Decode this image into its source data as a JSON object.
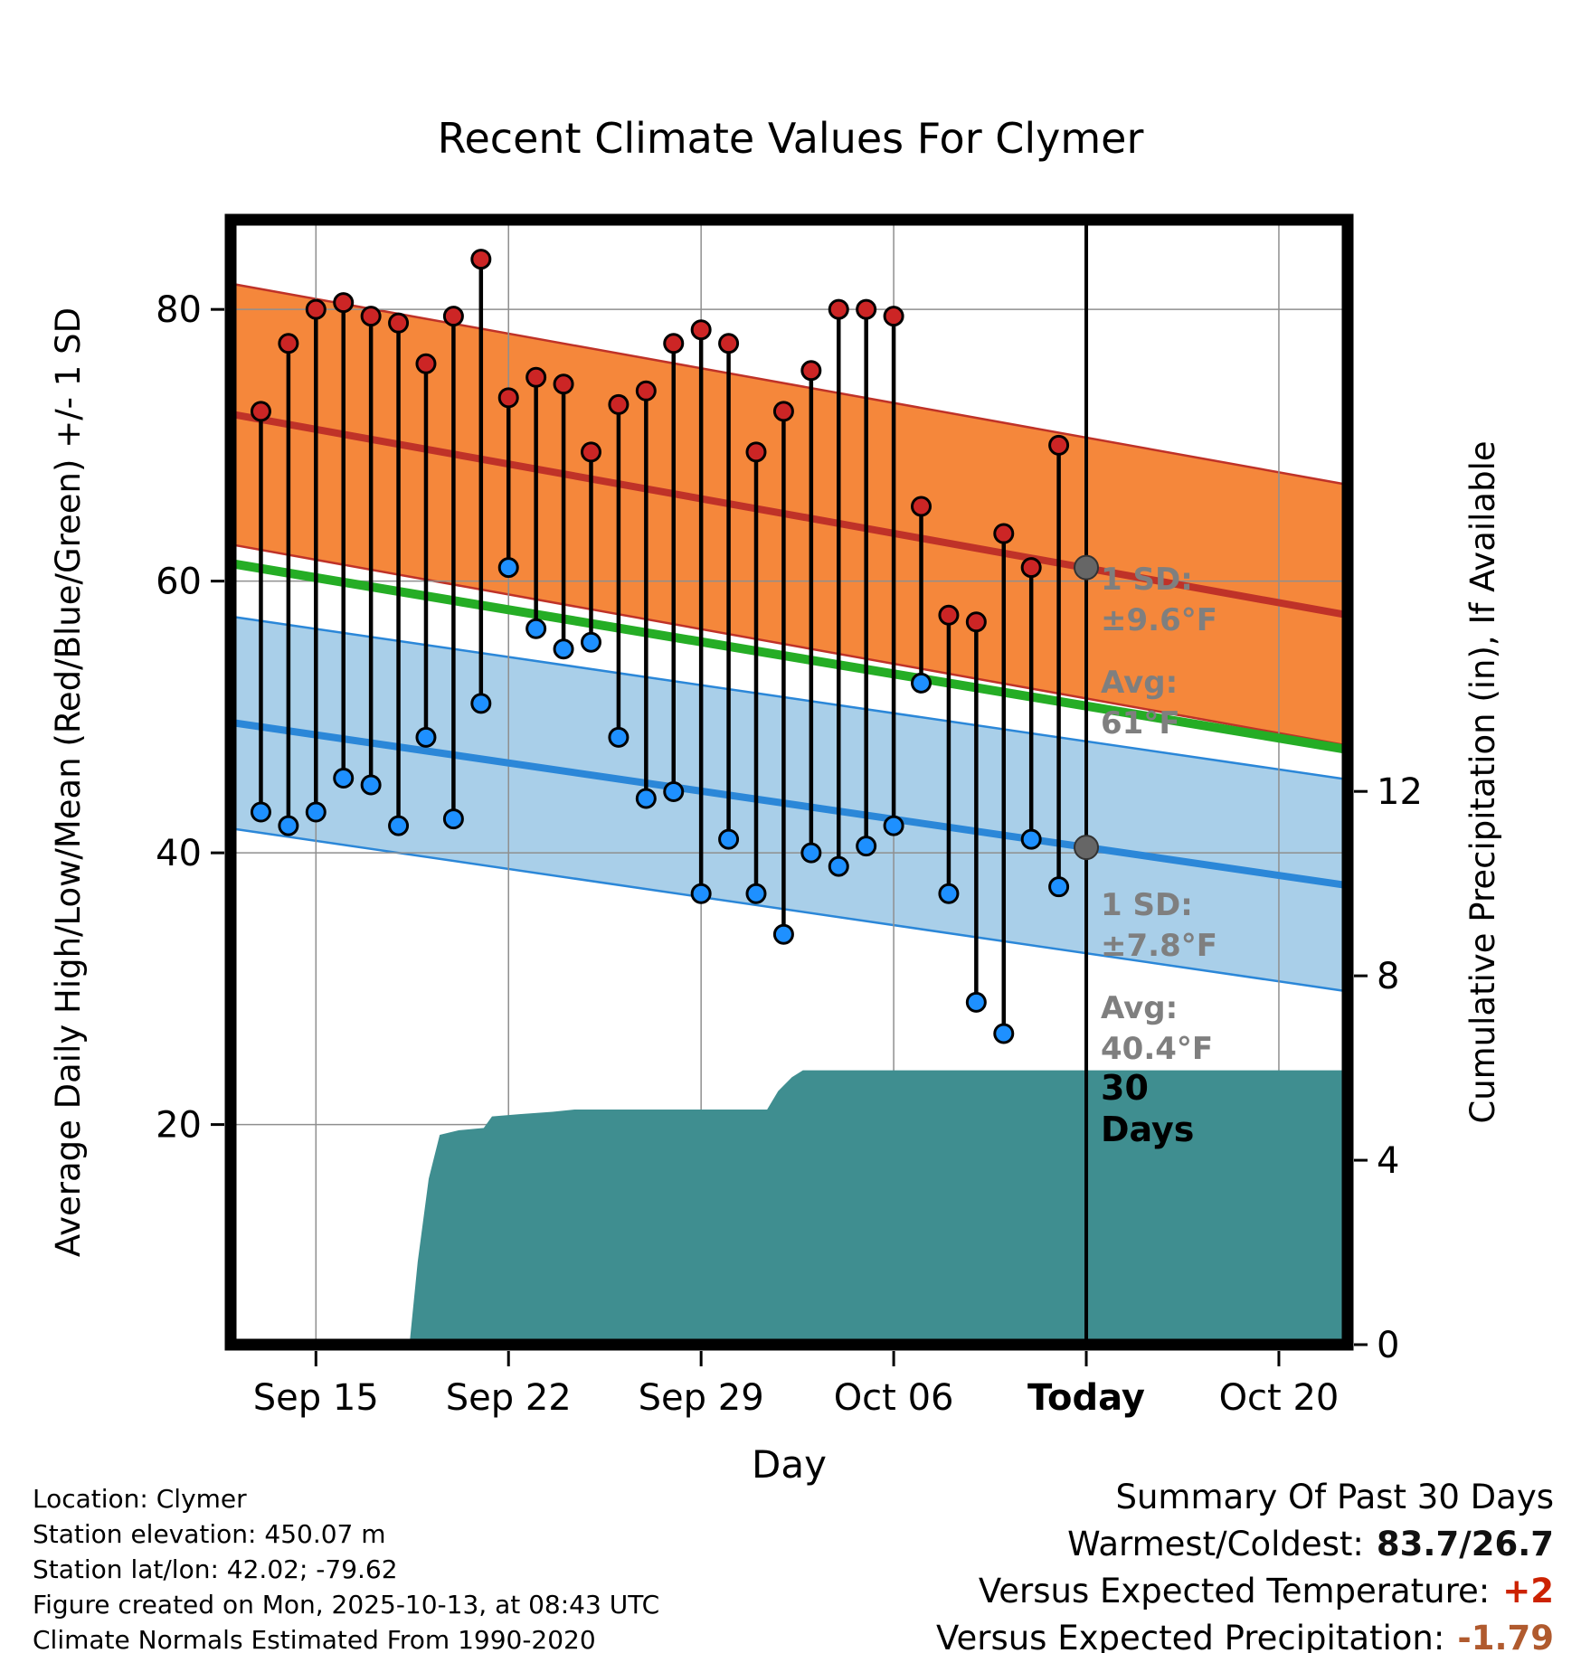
{
  "title": "Recent Climate Values For Clymer",
  "footer_left": {
    "lines": [
      "Location: Clymer",
      "Station elevation: 450.07 m",
      "Station lat/lon: 42.02; -79.62",
      "Figure created on Mon, 2025-10-13, at 08:43 UTC",
      "Climate Normals Estimated From 1990-2020"
    ]
  },
  "summary": {
    "title": "Summary Of Past 30 Days",
    "rows": [
      {
        "label": "Warmest/Coldest:",
        "value": "83.7/26.7",
        "color": "#111111"
      },
      {
        "label": "Versus Expected Temperature:",
        "value": "+2",
        "color": "#cc2200"
      },
      {
        "label": "Versus Expected Precipitation:",
        "value": "-1.79",
        "color": "#b05a2e"
      }
    ]
  },
  "chart_data": {
    "type": "line",
    "title": "Recent Climate Values For Clymer",
    "xlabel": "Day",
    "ylabel_left": "Average Daily High/Low/Mean (Red/Blue/Green) +/- 1 SD",
    "ylabel_right": "Cumulative Precipitation (in), If Available",
    "x_range_days": [
      -1.1,
      39.5
    ],
    "x_ticks": [
      {
        "day": 2,
        "label": "Sep 15",
        "bold": false
      },
      {
        "day": 9,
        "label": "Sep 22",
        "bold": false
      },
      {
        "day": 16,
        "label": "Sep 29",
        "bold": false
      },
      {
        "day": 23,
        "label": "Oct 06",
        "bold": false
      },
      {
        "day": 30,
        "label": "Today",
        "bold": true
      },
      {
        "day": 37,
        "label": "Oct 20",
        "bold": false
      }
    ],
    "y_left_range": [
      3.8,
      86.6
    ],
    "y_left_ticks": [
      20,
      40,
      60,
      80
    ],
    "y_right_range": [
      0,
      24.4
    ],
    "y_right_ticks": [
      0,
      4,
      8,
      12
    ],
    "today_day": 30,
    "daily": {
      "dates": [
        "Sep 13",
        "Sep 14",
        "Sep 15",
        "Sep 16",
        "Sep 17",
        "Sep 18",
        "Sep 19",
        "Sep 20",
        "Sep 21",
        "Sep 22",
        "Sep 23",
        "Sep 24",
        "Sep 25",
        "Sep 26",
        "Sep 27",
        "Sep 28",
        "Sep 29",
        "Sep 30",
        "Oct 01",
        "Oct 02",
        "Oct 03",
        "Oct 04",
        "Oct 05",
        "Oct 06",
        "Oct 07",
        "Oct 08",
        "Oct 09",
        "Oct 10",
        "Oct 11",
        "Oct 12"
      ],
      "high": [
        72.5,
        77.5,
        80,
        80.5,
        79.5,
        79,
        76,
        79.5,
        83.7,
        73.5,
        75,
        74.5,
        69.5,
        73,
        74,
        77.5,
        78.5,
        77.5,
        69.5,
        72.5,
        75.5,
        80,
        80,
        79.5,
        65.5,
        57.5,
        57,
        63.5,
        61,
        70
      ],
      "low": [
        43,
        42,
        43,
        45.5,
        45,
        42,
        48.5,
        42.5,
        51,
        61,
        56.5,
        55,
        55.5,
        48.5,
        44,
        44.5,
        37,
        41,
        37,
        34,
        40,
        39,
        40.5,
        42,
        52.5,
        37,
        29,
        26.7,
        41,
        37.5
      ]
    },
    "normals": {
      "high": {
        "avg_start": 72.3,
        "avg_end": 57.5,
        "sd": 9.6
      },
      "low": {
        "avg_start": 49.6,
        "avg_end": 37.6,
        "sd": 7.8
      },
      "mean": {
        "start": 61.3,
        "end": 47.6
      }
    },
    "today_markers": {
      "high_avg": 61,
      "high_sd": 9.6,
      "low_avg": 40.4,
      "low_sd": 7.8
    },
    "annotations": {
      "high_sd": [
        "1 SD:",
        "±9.6°F"
      ],
      "high_avg": [
        "Avg:",
        "61°F"
      ],
      "low_sd": [
        "1 SD:",
        "±7.8°F"
      ],
      "low_avg": [
        "Avg:",
        "40.4°F"
      ],
      "period": [
        "30",
        "Days"
      ]
    },
    "precip_cumulative": {
      "points": [
        [
          -1.1,
          0
        ],
        [
          5.4,
          0
        ],
        [
          5.7,
          1.8
        ],
        [
          6.1,
          3.6
        ],
        [
          6.5,
          4.55
        ],
        [
          7.2,
          4.65
        ],
        [
          8.1,
          4.7
        ],
        [
          8.4,
          4.95
        ],
        [
          9.4,
          5.0
        ],
        [
          10.6,
          5.05
        ],
        [
          11.4,
          5.1
        ],
        [
          18.4,
          5.1
        ],
        [
          18.8,
          5.5
        ],
        [
          19.3,
          5.8
        ],
        [
          19.7,
          5.95
        ],
        [
          39.5,
          5.95
        ]
      ]
    },
    "colors": {
      "high_band": "#f5873b",
      "high_line": "#bf3228",
      "high_dot": "#cc2525",
      "low_band": "#a9cfe9",
      "low_line": "#2b87d8",
      "low_dot": "#1e90ff",
      "mean_line": "#25ad25",
      "precip_fill": "#3f8e90",
      "stem": "#000000",
      "grid": "#8f8f8f",
      "annotation": "#7f7f7f",
      "period_label": "#000000",
      "today_dot": "#666666"
    }
  }
}
